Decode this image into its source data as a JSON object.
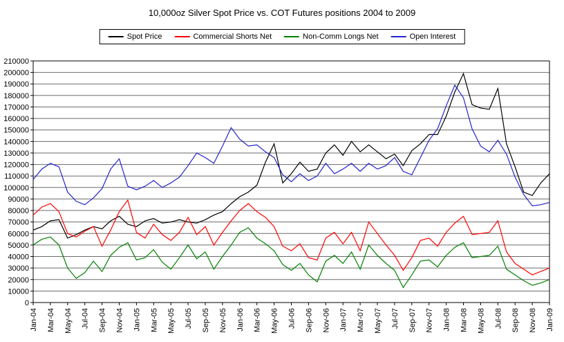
{
  "chart_data": {
    "type": "line",
    "title": "10,000oz Silver Spot Price vs. COT Futures positions 2004 to 2009",
    "legend_position": "top",
    "grid": "horizontal",
    "ylim": [
      0,
      210000
    ],
    "y_tick_step": 10000,
    "y_tick_labels": [
      "0",
      "10000",
      "20000",
      "30000",
      "40000",
      "50000",
      "60000",
      "70000",
      "80000",
      "90000",
      "100000",
      "110000",
      "120000",
      "130000",
      "140000",
      "150000",
      "160000",
      "170000",
      "180000",
      "190000",
      "200000",
      "210000"
    ],
    "x_tick_labels": [
      "Jan-04",
      "Mar-04",
      "May-04",
      "Jul-04",
      "Sep-04",
      "Nov-04",
      "Jan-05",
      "Mar-05",
      "May-05",
      "Jul-05",
      "Sep-05",
      "Nov-05",
      "Jan-06",
      "Mar-06",
      "May-06",
      "Jul-06",
      "Sep-06",
      "Nov-06",
      "Jan-07",
      "Mar-07",
      "May-07",
      "Jul-07",
      "Sep-07",
      "Nov-07",
      "Jan-08",
      "Mar-08",
      "May-08",
      "Jul-08",
      "Sep-08",
      "Nov-08",
      "Jan-09"
    ],
    "x_months": [
      "Jan-04",
      "Feb-04",
      "Mar-04",
      "Apr-04",
      "May-04",
      "Jun-04",
      "Jul-04",
      "Aug-04",
      "Sep-04",
      "Oct-04",
      "Nov-04",
      "Dec-04",
      "Jan-05",
      "Feb-05",
      "Mar-05",
      "Apr-05",
      "May-05",
      "Jun-05",
      "Jul-05",
      "Aug-05",
      "Sep-05",
      "Oct-05",
      "Nov-05",
      "Dec-05",
      "Jan-06",
      "Feb-06",
      "Mar-06",
      "Apr-06",
      "May-06",
      "Jun-06",
      "Jul-06",
      "Aug-06",
      "Sep-06",
      "Oct-06",
      "Nov-06",
      "Dec-06",
      "Jan-07",
      "Feb-07",
      "Mar-07",
      "Apr-07",
      "May-07",
      "Jun-07",
      "Jul-07",
      "Aug-07",
      "Sep-07",
      "Oct-07",
      "Nov-07",
      "Dec-07",
      "Jan-08",
      "Feb-08",
      "Mar-08",
      "Apr-08",
      "May-08",
      "Jun-08",
      "Jul-08",
      "Aug-08",
      "Sep-08",
      "Oct-08",
      "Nov-08",
      "Dec-08",
      "Jan-09"
    ],
    "series": [
      {
        "name": "Spot Price",
        "color": "#000000",
        "values": [
          63000,
          66000,
          71000,
          72000,
          56000,
          59000,
          63000,
          66000,
          64000,
          71000,
          75000,
          68000,
          66000,
          71000,
          73000,
          69000,
          70000,
          72000,
          70000,
          69000,
          72000,
          76000,
          79000,
          86000,
          92000,
          96000,
          102000,
          122000,
          138000,
          104000,
          112000,
          122000,
          114000,
          116000,
          130000,
          137000,
          128000,
          140000,
          131000,
          137000,
          131000,
          125000,
          129000,
          119000,
          132000,
          138000,
          146000,
          146000,
          162000,
          183000,
          199000,
          172000,
          169000,
          168000,
          186000,
          138000,
          118000,
          96000,
          93000,
          104000,
          112000
        ]
      },
      {
        "name": "Commercial Shorts Net",
        "color": "#ff0000",
        "values": [
          76000,
          83000,
          86000,
          79000,
          60000,
          57000,
          62000,
          66000,
          49000,
          63000,
          79000,
          89000,
          61000,
          56000,
          68000,
          59000,
          54000,
          61000,
          74000,
          59000,
          66000,
          50000,
          61000,
          71000,
          80000,
          86000,
          79000,
          74000,
          66000,
          49000,
          45000,
          51000,
          39000,
          37000,
          56000,
          61000,
          51000,
          61000,
          45000,
          70000,
          60000,
          50000,
          41000,
          28000,
          39000,
          54000,
          56000,
          49000,
          61000,
          69000,
          75000,
          59000,
          60000,
          61000,
          71000,
          44000,
          34000,
          29000,
          24000,
          27000,
          30000
        ]
      },
      {
        "name": "Non-Comm Longs Net",
        "color": "#008000",
        "values": [
          50000,
          55000,
          57000,
          50000,
          30000,
          21000,
          26000,
          36000,
          27000,
          41000,
          48000,
          52000,
          37000,
          39000,
          46000,
          35000,
          29000,
          39000,
          50000,
          38000,
          44000,
          29000,
          40000,
          50000,
          61000,
          65000,
          56000,
          51000,
          45000,
          33000,
          28000,
          34000,
          24000,
          18000,
          36000,
          41000,
          34000,
          44000,
          29000,
          50000,
          41000,
          34000,
          28000,
          13000,
          24000,
          36000,
          37000,
          31000,
          41000,
          48000,
          52000,
          39000,
          40000,
          41000,
          49000,
          29000,
          24000,
          19000,
          15000,
          17000,
          20000
        ]
      },
      {
        "name": "Open Interest",
        "color": "#2222cc",
        "values": [
          107000,
          116000,
          121000,
          118000,
          96000,
          88000,
          85000,
          91000,
          99000,
          116000,
          125000,
          101000,
          98000,
          101000,
          106000,
          100000,
          104000,
          109000,
          119000,
          130000,
          126000,
          121000,
          136000,
          152000,
          142000,
          136000,
          137000,
          131000,
          126000,
          111000,
          105000,
          112000,
          106000,
          110000,
          121000,
          112000,
          116000,
          121000,
          114000,
          121000,
          116000,
          119000,
          126000,
          114000,
          111000,
          126000,
          141000,
          151000,
          171000,
          189000,
          178000,
          151000,
          136000,
          131000,
          141000,
          129000,
          109000,
          94000,
          84000,
          85000,
          87000
        ]
      }
    ]
  }
}
